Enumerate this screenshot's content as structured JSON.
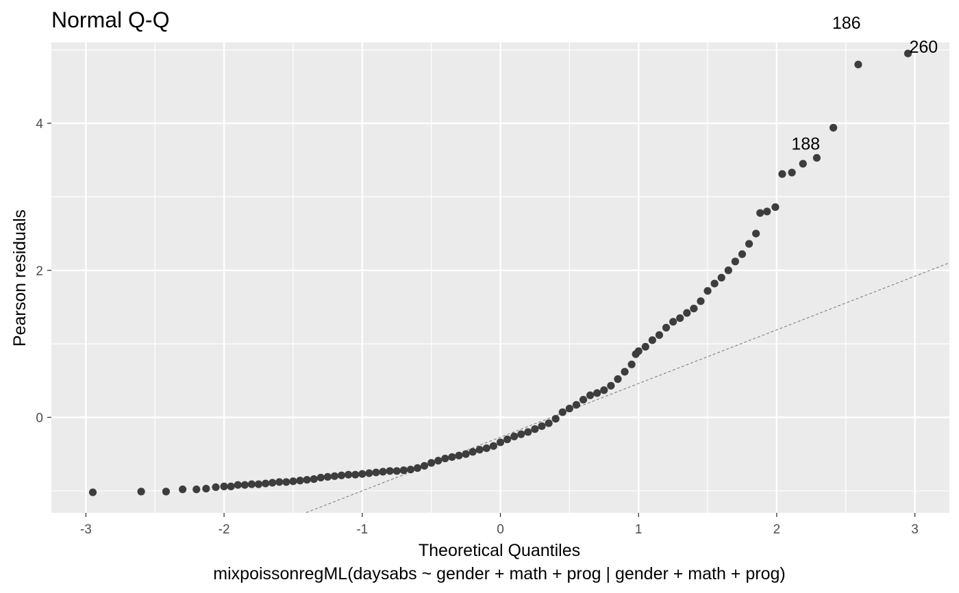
{
  "chart_data": {
    "type": "scatter",
    "title": "Normal Q-Q",
    "xlabel": "Theoretical Quantiles",
    "ylabel": "Pearson residuals",
    "caption": "mixpoissonregML(daysabs ~ gender + math + prog | gender + math + prog)",
    "xlim": [
      -3.25,
      3.25
    ],
    "ylim": [
      -1.3,
      5.1
    ],
    "x_ticks": [
      -3,
      -2,
      -1,
      0,
      1,
      2,
      3
    ],
    "x_tick_labels": [
      "-3",
      "-2",
      "-1",
      "0",
      "1",
      "2",
      "3"
    ],
    "y_ticks": [
      0,
      2,
      4
    ],
    "y_tick_labels": [
      "0",
      "2",
      "4"
    ],
    "grid": true,
    "background": "#ebebeb",
    "point_color": "#3d3d3d",
    "reference_line": {
      "style": "dashed",
      "color": "#7f7f7f",
      "slope": 0.73,
      "intercept": -0.27
    },
    "points": [
      [
        -2.95,
        -1.02
      ],
      [
        -2.6,
        -1.01
      ],
      [
        -2.42,
        -1.01
      ],
      [
        -2.3,
        -0.98
      ],
      [
        -2.2,
        -0.98
      ],
      [
        -2.13,
        -0.97
      ],
      [
        -2.06,
        -0.95
      ],
      [
        -2.0,
        -0.94
      ],
      [
        -1.95,
        -0.94
      ],
      [
        -1.9,
        -0.92
      ],
      [
        -1.85,
        -0.92
      ],
      [
        -1.8,
        -0.91
      ],
      [
        -1.75,
        -0.91
      ],
      [
        -1.7,
        -0.9
      ],
      [
        -1.65,
        -0.89
      ],
      [
        -1.6,
        -0.88
      ],
      [
        -1.55,
        -0.88
      ],
      [
        -1.5,
        -0.87
      ],
      [
        -1.45,
        -0.86
      ],
      [
        -1.4,
        -0.85
      ],
      [
        -1.35,
        -0.84
      ],
      [
        -1.3,
        -0.82
      ],
      [
        -1.25,
        -0.81
      ],
      [
        -1.2,
        -0.8
      ],
      [
        -1.15,
        -0.79
      ],
      [
        -1.1,
        -0.78
      ],
      [
        -1.05,
        -0.78
      ],
      [
        -1.0,
        -0.77
      ],
      [
        -0.95,
        -0.76
      ],
      [
        -0.9,
        -0.75
      ],
      [
        -0.85,
        -0.74
      ],
      [
        -0.8,
        -0.73
      ],
      [
        -0.75,
        -0.73
      ],
      [
        -0.7,
        -0.72
      ],
      [
        -0.65,
        -0.71
      ],
      [
        -0.6,
        -0.69
      ],
      [
        -0.55,
        -0.66
      ],
      [
        -0.5,
        -0.62
      ],
      [
        -0.45,
        -0.59
      ],
      [
        -0.4,
        -0.56
      ],
      [
        -0.35,
        -0.54
      ],
      [
        -0.3,
        -0.52
      ],
      [
        -0.25,
        -0.5
      ],
      [
        -0.2,
        -0.47
      ],
      [
        -0.15,
        -0.44
      ],
      [
        -0.1,
        -0.42
      ],
      [
        -0.05,
        -0.39
      ],
      [
        0.0,
        -0.34
      ],
      [
        0.05,
        -0.3
      ],
      [
        0.1,
        -0.26
      ],
      [
        0.15,
        -0.23
      ],
      [
        0.2,
        -0.2
      ],
      [
        0.25,
        -0.16
      ],
      [
        0.3,
        -0.12
      ],
      [
        0.35,
        -0.08
      ],
      [
        0.4,
        -0.02
      ],
      [
        0.45,
        0.07
      ],
      [
        0.5,
        0.12
      ],
      [
        0.55,
        0.17
      ],
      [
        0.6,
        0.24
      ],
      [
        0.65,
        0.3
      ],
      [
        0.7,
        0.33
      ],
      [
        0.75,
        0.37
      ],
      [
        0.8,
        0.43
      ],
      [
        0.85,
        0.52
      ],
      [
        0.9,
        0.62
      ],
      [
        0.95,
        0.72
      ],
      [
        0.98,
        0.86
      ],
      [
        1.0,
        0.9
      ],
      [
        1.05,
        0.96
      ],
      [
        1.1,
        1.05
      ],
      [
        1.15,
        1.12
      ],
      [
        1.2,
        1.22
      ],
      [
        1.25,
        1.3
      ],
      [
        1.3,
        1.35
      ],
      [
        1.35,
        1.42
      ],
      [
        1.4,
        1.48
      ],
      [
        1.45,
        1.58
      ],
      [
        1.5,
        1.72
      ],
      [
        1.55,
        1.82
      ],
      [
        1.6,
        1.9
      ],
      [
        1.65,
        2.0
      ],
      [
        1.7,
        2.12
      ],
      [
        1.75,
        2.22
      ],
      [
        1.8,
        2.36
      ],
      [
        1.85,
        2.5
      ],
      [
        1.88,
        2.78
      ],
      [
        1.93,
        2.8
      ],
      [
        1.99,
        2.86
      ],
      [
        2.04,
        3.31
      ],
      [
        2.11,
        3.33
      ],
      [
        2.19,
        3.45
      ],
      [
        2.29,
        3.53
      ],
      [
        2.41,
        3.94
      ],
      [
        2.59,
        4.8
      ],
      [
        2.95,
        4.95
      ]
    ],
    "annotations": [
      {
        "text": "260",
        "x": 2.95,
        "y": 4.95
      },
      {
        "text": "186",
        "x": 2.59,
        "y": 4.8
      },
      {
        "text": "188",
        "x": 2.29,
        "y": 3.53
      }
    ]
  }
}
